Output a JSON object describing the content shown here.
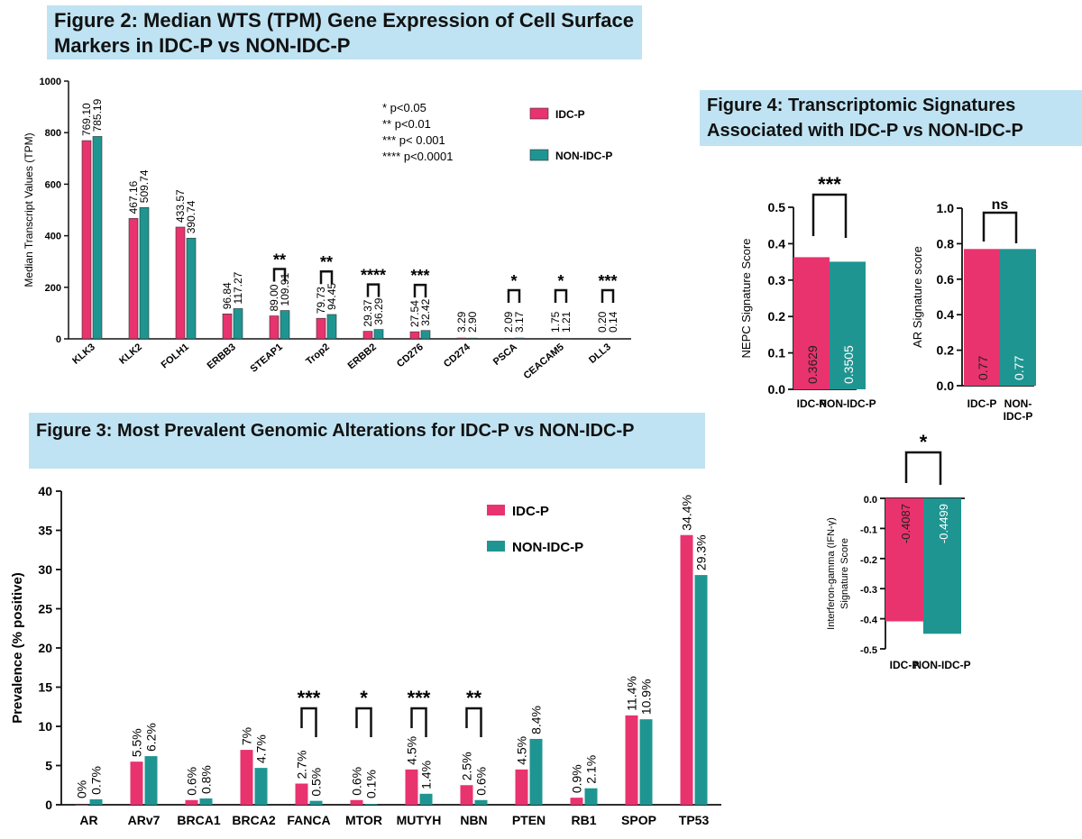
{
  "colors": {
    "idc": "#e8336f",
    "non": "#1f9592",
    "banner": "#bfe3f2"
  },
  "figure2": {
    "title": "Figure 2:  Median WTS (TPM) Gene Expression of Cell Surface Markers in IDC-P vs NON-IDC-P",
    "significance_key": [
      "* p<0.05",
      "** p<0.01",
      "*** p< 0.001",
      "**** p<0.0001"
    ],
    "legend": [
      "IDC-P",
      "NON-IDC-P"
    ]
  },
  "figure3": {
    "title": "Figure 3: Most Prevalent Genomic Alterations for IDC-P vs NON-IDC-P",
    "legend": [
      "IDC-P",
      "NON-IDC-P"
    ]
  },
  "figure4": {
    "title": "Figure 4: Transcriptomic Signatures Associated with IDC-P vs NON-IDC-P"
  },
  "chart_data": [
    {
      "id": "fig2",
      "type": "bar",
      "ylabel": "Median Transcript Values (TPM)",
      "ylim": [
        0,
        1000
      ],
      "yticks": [
        0,
        200,
        400,
        600,
        800,
        1000
      ],
      "categories": [
        "KLK3",
        "KLK2",
        "FOLH1",
        "ERBB3",
        "STEAP1",
        "Trop2",
        "ERBB2",
        "CD276",
        "CD274",
        "PSCA",
        "CEACAM5",
        "DLL3"
      ],
      "series": [
        {
          "name": "IDC-P",
          "values": [
            769.1,
            467.16,
            433.57,
            96.84,
            89.0,
            79.73,
            29.37,
            27.54,
            3.29,
            2.09,
            1.75,
            0.2
          ],
          "labels": [
            "769.10",
            "467.16",
            "433.57",
            "96.84",
            "89.00",
            "79.73",
            "29.37",
            "27.54",
            "3.29",
            "2.09",
            "1.75",
            "0.20"
          ]
        },
        {
          "name": "NON-IDC-P",
          "values": [
            785.19,
            509.74,
            390.74,
            117.27,
            109.91,
            94.45,
            36.29,
            32.42,
            2.9,
            3.17,
            1.21,
            0.14
          ],
          "labels": [
            "785.19",
            "509.74",
            "390.74",
            "117.27",
            "109.91",
            "94.45",
            "36.29",
            "32.42",
            "2.90",
            "3.17",
            "1.21",
            "0.14"
          ]
        }
      ],
      "significance": [
        "",
        "",
        "",
        "",
        "**",
        "**",
        "****",
        "***",
        "",
        "*",
        "*",
        "***"
      ]
    },
    {
      "id": "fig3",
      "type": "bar",
      "ylabel": "Prevalence (% positive)",
      "ylim": [
        0,
        40
      ],
      "yticks": [
        0,
        5,
        10,
        15,
        20,
        25,
        30,
        35,
        40
      ],
      "categories": [
        "AR",
        "ARv7",
        "BRCA1",
        "BRCA2",
        "FANCA",
        "MTOR",
        "MUTYH",
        "NBN",
        "PTEN",
        "RB1",
        "SPOP",
        "TP53"
      ],
      "series": [
        {
          "name": "IDC-P",
          "values": [
            0,
            5.5,
            0.6,
            7,
            2.7,
            0.6,
            4.5,
            2.5,
            4.5,
            0.9,
            11.4,
            34.4
          ],
          "labels": [
            "0%",
            "5.5%",
            "0.6%",
            "7%",
            "2.7%",
            "0.6%",
            "4.5%",
            "2.5%",
            "4.5%",
            "0.9%",
            "11.4%",
            "34.4%"
          ]
        },
        {
          "name": "NON-IDC-P",
          "values": [
            0.7,
            6.2,
            0.8,
            4.7,
            0.5,
            0.1,
            1.4,
            0.6,
            8.4,
            2.1,
            10.9,
            29.3
          ],
          "labels": [
            "0.7%",
            "6.2%",
            "0.8%",
            "4.7%",
            "0.5%",
            "0.1%",
            "1.4%",
            "0.6%",
            "8.4%",
            "2.1%",
            "10.9%",
            "29.3%"
          ]
        }
      ],
      "significance": [
        "",
        "",
        "",
        "",
        "***",
        "*",
        "***",
        "**",
        "",
        "",
        "",
        ""
      ]
    },
    {
      "id": "nepc",
      "type": "bar",
      "ylabel": "NEPC Signature Score",
      "ylim": [
        0,
        0.5
      ],
      "yticks": [
        0.0,
        0.1,
        0.2,
        0.3,
        0.4,
        0.5
      ],
      "tick_labels": [
        "0.0",
        "0.1",
        "0.2",
        "0.3",
        "0.4",
        "0.5"
      ],
      "categories": [
        "IDC-P",
        "NON-IDC-P"
      ],
      "values": [
        0.3629,
        0.3505
      ],
      "labels": [
        "0.3629",
        "0.3505"
      ],
      "significance": "***"
    },
    {
      "id": "ar",
      "type": "bar",
      "ylabel": "AR Signature score",
      "ylim": [
        0,
        1.0
      ],
      "yticks": [
        0.0,
        0.2,
        0.4,
        0.6,
        0.8,
        1.0
      ],
      "tick_labels": [
        "0.0",
        "0.2",
        "0.4",
        "0.6",
        "0.8",
        "1.0"
      ],
      "categories": [
        "IDC-P",
        "NON-\nIDC-P"
      ],
      "values": [
        0.77,
        0.77
      ],
      "labels": [
        "0.77",
        "0.77"
      ],
      "significance": "ns"
    },
    {
      "id": "ifn",
      "type": "bar",
      "ylabel": "Interferon-gamma (IFN-γ) Signature Score",
      "ylim": [
        -0.5,
        0.0
      ],
      "yticks": [
        0.0,
        -0.1,
        -0.2,
        -0.3,
        -0.4,
        -0.5
      ],
      "tick_labels": [
        "0.0",
        "-0.1",
        "-0.2",
        "-0.3",
        "-0.4",
        "-0.5"
      ],
      "categories": [
        "IDC-P",
        "NON-IDC-P"
      ],
      "values": [
        -0.4087,
        -0.4499
      ],
      "labels": [
        "-0.4087",
        "-0.4499"
      ],
      "significance": "*"
    }
  ]
}
